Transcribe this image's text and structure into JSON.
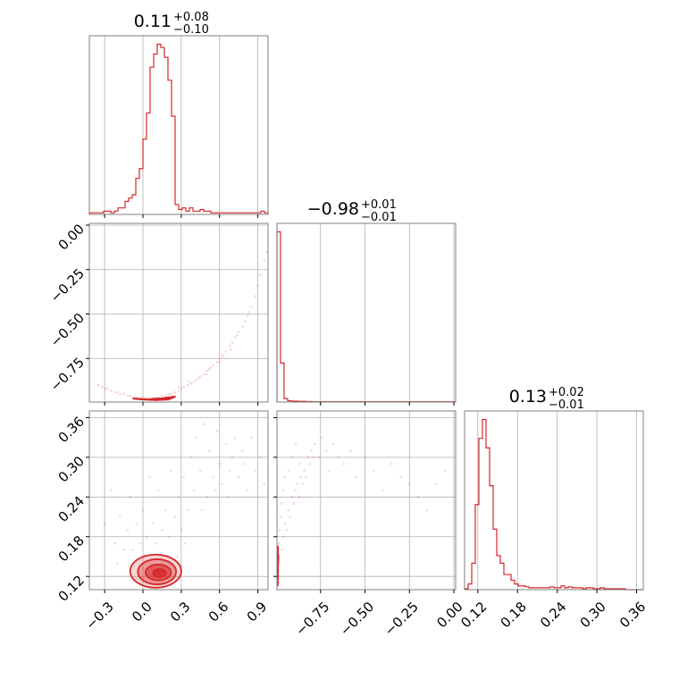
{
  "chart_data": {
    "type": "corner",
    "color": "#d62728",
    "grid": true,
    "parameters": [
      {
        "title_value": "0.11",
        "title_plus": "+0.08",
        "title_minus": "−0.10",
        "range": [
          -0.42,
          0.98
        ],
        "ticks": [
          -0.3,
          0.0,
          0.3,
          0.6,
          0.9
        ],
        "tick_labels": [
          "−0.3",
          "0.0",
          "0.3",
          "0.6",
          "0.9"
        ]
      },
      {
        "title_value": "−0.98",
        "title_plus": "+0.01",
        "title_minus": "−0.01",
        "range": [
          -0.995,
          0.01
        ],
        "ticks": [
          -0.75,
          -0.5,
          -0.25,
          0.0
        ],
        "tick_labels": [
          "−0.75",
          "−0.50",
          "−0.25",
          "0.00"
        ]
      },
      {
        "title_value": "0.13",
        "title_plus": "+0.02",
        "title_minus": "−0.01",
        "range": [
          0.1,
          0.37
        ],
        "ticks": [
          0.12,
          0.18,
          0.24,
          0.3,
          0.36
        ],
        "tick_labels": [
          "0.12",
          "0.18",
          "0.24",
          "0.30",
          "0.36"
        ]
      }
    ],
    "histograms": [
      {
        "param": 0,
        "edges": [
          -0.42,
          -0.392,
          -0.364,
          -0.336,
          -0.308,
          -0.28,
          -0.252,
          -0.224,
          -0.196,
          -0.168,
          -0.14,
          -0.112,
          -0.084,
          -0.056,
          -0.028,
          0.0,
          0.028,
          0.056,
          0.084,
          0.112,
          0.14,
          0.168,
          0.196,
          0.224,
          0.252,
          0.28,
          0.308,
          0.336,
          0.364,
          0.392,
          0.42,
          0.448,
          0.476,
          0.504,
          0.532,
          0.56,
          0.588,
          0.616,
          0.644,
          0.672,
          0.7,
          0.728,
          0.756,
          0.784,
          0.812,
          0.84,
          0.868,
          0.896,
          0.924,
          0.952,
          0.98
        ],
        "counts": [
          0.5,
          0.5,
          0.5,
          0.5,
          1,
          1,
          0.5,
          1,
          2,
          2,
          4,
          5,
          6,
          11,
          14,
          23,
          31,
          45,
          49,
          52,
          51,
          48,
          41,
          30,
          3,
          1.5,
          2,
          1,
          2,
          1,
          1,
          1.5,
          1,
          1,
          0.5,
          0.5,
          0.5,
          0.5,
          0.5,
          0.5,
          0.5,
          0.5,
          0.5,
          0.5,
          0.5,
          0.5,
          0.5,
          0.5,
          1,
          0.5
        ]
      },
      {
        "param": 1,
        "edges": [
          -0.995,
          -0.975,
          -0.955,
          -0.935,
          -0.915,
          -0.895,
          -0.875,
          -0.855,
          -0.835,
          -0.815,
          -0.795,
          -0.775,
          -0.755,
          -0.735,
          -0.715,
          -0.695,
          -0.675,
          -0.655,
          -0.635,
          -0.615,
          -0.595,
          -0.575,
          -0.555,
          -0.535,
          -0.515,
          -0.495,
          -0.475,
          -0.455,
          -0.435,
          -0.415,
          -0.395,
          -0.375,
          -0.355,
          -0.335,
          -0.315,
          -0.295,
          -0.275,
          -0.255,
          -0.235,
          -0.215,
          -0.195,
          -0.175,
          -0.155,
          -0.135,
          -0.115,
          -0.095,
          -0.075,
          -0.055,
          -0.035,
          -0.015,
          0.005
        ],
        "counts": [
          196,
          45,
          4,
          1.5,
          1,
          1,
          0.8,
          0.8,
          0.5,
          0.5,
          0.3,
          0.3,
          0.3,
          0.3,
          0.3,
          0.3,
          0.3,
          0.3,
          0.3,
          0.3,
          0.3,
          0.3,
          0.3,
          0.3,
          0.3,
          0.3,
          0.3,
          0.3,
          0.3,
          0.3,
          0.3,
          0.3,
          0.3,
          0.3,
          0.3,
          0.3,
          0.3,
          0.3,
          0.3,
          0.3,
          0.3,
          0.3,
          0.3,
          0.3,
          0.3,
          0.3,
          0.3,
          0.3,
          0.3,
          0.3
        ]
      },
      {
        "param": 2,
        "edges": [
          0.1,
          0.1054,
          0.1108,
          0.1162,
          0.1216,
          0.127,
          0.1324,
          0.1378,
          0.1432,
          0.1486,
          0.154,
          0.1594,
          0.1648,
          0.1702,
          0.1756,
          0.181,
          0.1864,
          0.1918,
          0.1972,
          0.2026,
          0.208,
          0.2134,
          0.2188,
          0.2242,
          0.2296,
          0.235,
          0.2404,
          0.2458,
          0.2512,
          0.2566,
          0.262,
          0.2674,
          0.2728,
          0.2782,
          0.2836,
          0.289,
          0.2944,
          0.2998,
          0.3052,
          0.3106,
          0.316,
          0.3214,
          0.3268,
          0.3322,
          0.3376,
          0.343,
          0.3484,
          0.3538,
          0.3592,
          0.3646,
          0.37
        ],
        "counts": [
          0.5,
          3,
          14,
          45,
          80,
          90,
          75,
          55,
          32,
          18,
          14,
          8,
          8,
          5,
          3,
          2,
          2,
          1.5,
          1,
          1,
          1,
          1,
          1,
          1,
          1.5,
          1,
          1,
          2,
          1,
          1.5,
          1,
          1,
          1,
          0.5,
          1,
          1,
          0.5,
          0.5,
          1,
          0.5,
          0.5,
          0.5,
          0.5,
          0.5,
          0.5,
          0,
          0,
          0,
          0,
          0
        ]
      }
    ],
    "panels_2d": [
      {
        "x_param": 0,
        "y_param": 1,
        "points": [
          [
            -0.35,
            -0.9
          ],
          [
            -0.32,
            -0.91
          ],
          [
            -0.3,
            -0.92
          ],
          [
            -0.28,
            -0.92
          ],
          [
            -0.25,
            -0.93
          ],
          [
            -0.22,
            -0.94
          ],
          [
            -0.2,
            -0.94
          ],
          [
            -0.18,
            -0.95
          ],
          [
            -0.15,
            -0.95
          ],
          [
            -0.12,
            -0.96
          ],
          [
            -0.1,
            -0.96
          ],
          [
            -0.08,
            -0.97
          ],
          [
            -0.05,
            -0.97
          ],
          [
            -0.02,
            -0.97
          ],
          [
            0.0,
            -0.97
          ],
          [
            0.02,
            -0.97
          ],
          [
            0.05,
            -0.97
          ],
          [
            0.08,
            -0.97
          ],
          [
            0.1,
            -0.97
          ],
          [
            0.12,
            -0.97
          ],
          [
            0.15,
            -0.96
          ],
          [
            0.18,
            -0.96
          ],
          [
            0.2,
            -0.95
          ],
          [
            0.22,
            -0.95
          ],
          [
            0.25,
            -0.94
          ],
          [
            0.28,
            -0.93
          ],
          [
            0.3,
            -0.92
          ],
          [
            0.32,
            -0.91
          ],
          [
            0.35,
            -0.9
          ],
          [
            0.38,
            -0.89
          ],
          [
            0.4,
            -0.88
          ],
          [
            0.42,
            -0.87
          ],
          [
            0.45,
            -0.85
          ],
          [
            0.48,
            -0.84
          ],
          [
            0.5,
            -0.82
          ],
          [
            0.52,
            -0.81
          ],
          [
            0.55,
            -0.79
          ],
          [
            0.58,
            -0.77
          ],
          [
            0.6,
            -0.75
          ],
          [
            0.62,
            -0.73
          ],
          [
            0.65,
            -0.71
          ],
          [
            0.68,
            -0.68
          ],
          [
            0.7,
            -0.66
          ],
          [
            0.72,
            -0.63
          ],
          [
            0.75,
            -0.6
          ],
          [
            0.78,
            -0.57
          ],
          [
            0.8,
            -0.54
          ],
          [
            0.82,
            -0.51
          ],
          [
            0.85,
            -0.46
          ],
          [
            0.88,
            -0.4
          ],
          [
            0.9,
            -0.34
          ],
          [
            0.92,
            -0.28
          ],
          [
            0.95,
            -0.2
          ],
          [
            0.97,
            -0.15
          ],
          [
            0.44,
            -0.86
          ],
          [
            0.53,
            -0.8
          ],
          [
            0.63,
            -0.74
          ],
          [
            0.74,
            -0.62
          ],
          [
            0.83,
            -0.49
          ],
          [
            0.28,
            -0.91
          ],
          [
            0.36,
            -0.88
          ],
          [
            0.5,
            -0.84
          ],
          [
            0.6,
            -0.77
          ],
          [
            0.69,
            -0.7
          ]
        ],
        "core": [
          [
            -0.08,
            -0.975
          ],
          [
            0.0,
            -0.98
          ],
          [
            0.1,
            -0.983
          ],
          [
            0.2,
            -0.98
          ],
          [
            0.25,
            -0.965
          ],
          [
            0.15,
            -0.975
          ],
          [
            0.05,
            -0.98
          ]
        ]
      },
      {
        "x_param": 0,
        "y_param": 2,
        "points": [
          [
            -0.25,
            0.25
          ],
          [
            -0.22,
            0.17
          ],
          [
            -0.18,
            0.21
          ],
          [
            -0.15,
            0.16
          ],
          [
            -0.12,
            0.19
          ],
          [
            -0.1,
            0.24
          ],
          [
            -0.08,
            0.16
          ],
          [
            -0.05,
            0.2
          ],
          [
            -0.02,
            0.17
          ],
          [
            0.0,
            0.22
          ],
          [
            0.03,
            0.18
          ],
          [
            0.05,
            0.27
          ],
          [
            0.08,
            0.2
          ],
          [
            0.1,
            0.17
          ],
          [
            0.12,
            0.25
          ],
          [
            0.15,
            0.19
          ],
          [
            0.18,
            0.22
          ],
          [
            0.2,
            0.18
          ],
          [
            0.22,
            0.28
          ],
          [
            0.25,
            0.21
          ],
          [
            0.28,
            0.24
          ],
          [
            0.3,
            0.19
          ],
          [
            0.32,
            0.27
          ],
          [
            0.35,
            0.22
          ],
          [
            0.38,
            0.3
          ],
          [
            0.4,
            0.25
          ],
          [
            0.42,
            0.33
          ],
          [
            0.45,
            0.28
          ],
          [
            0.48,
            0.35
          ],
          [
            0.5,
            0.24
          ],
          [
            0.52,
            0.31
          ],
          [
            0.55,
            0.27
          ],
          [
            0.58,
            0.34
          ],
          [
            0.6,
            0.29
          ],
          [
            0.62,
            0.26
          ],
          [
            0.65,
            0.32
          ],
          [
            0.68,
            0.28
          ],
          [
            0.7,
            0.3
          ],
          [
            0.72,
            0.33
          ],
          [
            0.75,
            0.27
          ],
          [
            0.78,
            0.31
          ],
          [
            0.8,
            0.29
          ],
          [
            0.85,
            0.33
          ],
          [
            0.88,
            0.28
          ],
          [
            0.92,
            0.3
          ],
          [
            0.95,
            0.26
          ],
          [
            -0.3,
            0.2
          ],
          [
            -0.2,
            0.14
          ],
          [
            0.27,
            0.15
          ],
          [
            0.33,
            0.17
          ],
          [
            0.46,
            0.22
          ],
          [
            0.57,
            0.25
          ],
          [
            0.67,
            0.24
          ],
          [
            0.82,
            0.25
          ]
        ],
        "contours": [
          {
            "cx": 0.1,
            "cy": 0.128,
            "rx": 0.2,
            "ry": 0.025,
            "fill_opacity": 0.2
          },
          {
            "cx": 0.11,
            "cy": 0.127,
            "rx": 0.15,
            "ry": 0.019,
            "fill_opacity": 0.35
          },
          {
            "cx": 0.12,
            "cy": 0.126,
            "rx": 0.1,
            "ry": 0.012,
            "fill_opacity": 0.55
          },
          {
            "cx": 0.13,
            "cy": 0.125,
            "rx": 0.05,
            "ry": 0.006,
            "fill_opacity": 0.8
          }
        ]
      },
      {
        "x_param": 1,
        "y_param": 2,
        "points": [
          [
            -0.98,
            0.14
          ],
          [
            -0.97,
            0.16
          ],
          [
            -0.96,
            0.18
          ],
          [
            -0.95,
            0.2
          ],
          [
            -0.94,
            0.19
          ],
          [
            -0.93,
            0.22
          ],
          [
            -0.92,
            0.21
          ],
          [
            -0.91,
            0.24
          ],
          [
            -0.9,
            0.23
          ],
          [
            -0.89,
            0.25
          ],
          [
            -0.88,
            0.26
          ],
          [
            -0.87,
            0.24
          ],
          [
            -0.86,
            0.27
          ],
          [
            -0.85,
            0.26
          ],
          [
            -0.84,
            0.28
          ],
          [
            -0.83,
            0.27
          ],
          [
            -0.82,
            0.3
          ],
          [
            -0.81,
            0.29
          ],
          [
            -0.8,
            0.31
          ],
          [
            -0.79,
            0.3
          ],
          [
            -0.78,
            0.32
          ],
          [
            -0.76,
            0.3
          ],
          [
            -0.74,
            0.33
          ],
          [
            -0.72,
            0.31
          ],
          [
            -0.7,
            0.28
          ],
          [
            -0.68,
            0.32
          ],
          [
            -0.65,
            0.3
          ],
          [
            -0.62,
            0.29
          ],
          [
            -0.58,
            0.31
          ],
          [
            -0.55,
            0.27
          ],
          [
            -0.5,
            0.3
          ],
          [
            -0.45,
            0.28
          ],
          [
            -0.4,
            0.25
          ],
          [
            -0.35,
            0.29
          ],
          [
            -0.3,
            0.27
          ],
          [
            -0.25,
            0.26
          ],
          [
            -0.2,
            0.24
          ],
          [
            -0.15,
            0.22
          ],
          [
            -0.1,
            0.26
          ],
          [
            -0.05,
            0.28
          ],
          [
            -0.99,
            0.12
          ],
          [
            -0.99,
            0.13
          ],
          [
            -0.99,
            0.15
          ],
          [
            -0.985,
            0.17
          ],
          [
            -0.985,
            0.11
          ],
          [
            -0.98,
            0.19
          ],
          [
            -0.975,
            0.21
          ],
          [
            -0.97,
            0.23
          ],
          [
            -0.96,
            0.25
          ],
          [
            -0.95,
            0.27
          ],
          [
            -0.93,
            0.28
          ],
          [
            -0.91,
            0.3
          ],
          [
            -0.89,
            0.32
          ],
          [
            -0.87,
            0.29
          ]
        ],
        "core": [
          [
            -0.99,
            0.115
          ],
          [
            -0.99,
            0.12
          ],
          [
            -0.99,
            0.125
          ],
          [
            -0.99,
            0.13
          ],
          [
            -0.99,
            0.135
          ],
          [
            -0.99,
            0.14
          ],
          [
            -0.988,
            0.145
          ],
          [
            -0.988,
            0.15
          ],
          [
            -0.99,
            0.155
          ],
          [
            -0.992,
            0.16
          ],
          [
            -0.99,
            0.165
          ],
          [
            -0.992,
            0.11
          ],
          [
            -0.992,
            0.105
          ]
        ]
      }
    ]
  }
}
